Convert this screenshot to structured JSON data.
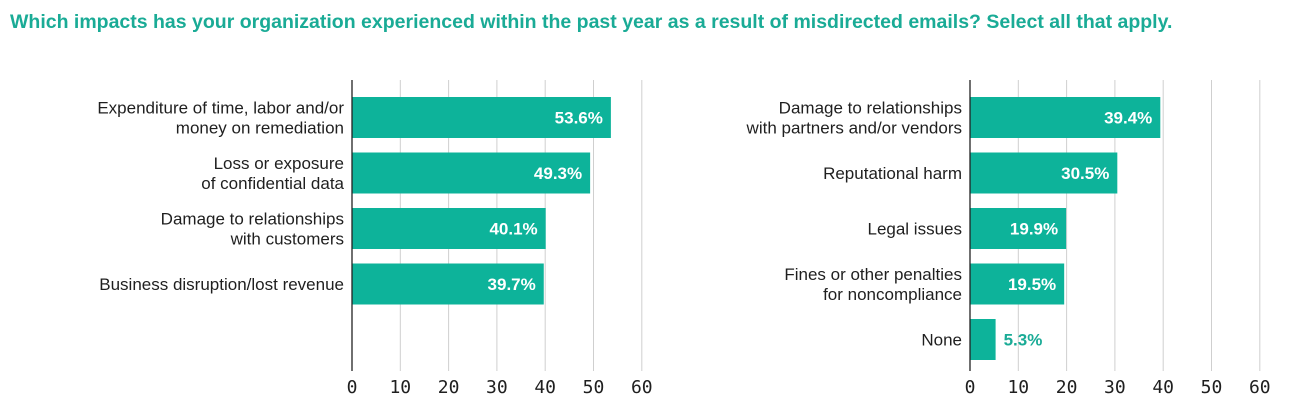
{
  "question": "Which impacts has your organization experienced within the past year as a result of misdirected emails? Select all that apply.",
  "colors": {
    "accent": "#1aab96",
    "bar": "#0db39a",
    "grid": "#cfcfcf",
    "axis": "#222222",
    "text": "#1f1f1f",
    "value_inside": "#ffffff"
  },
  "chart_data": [
    {
      "type": "bar",
      "orientation": "horizontal",
      "categories": [
        [
          "Expenditure of time, labor and/or",
          "money on remediation"
        ],
        [
          "Loss or exposure",
          "of confidential data"
        ],
        [
          "Damage to relationships",
          "with customers"
        ],
        [
          "Business disruption/lost revenue"
        ]
      ],
      "values": [
        53.6,
        49.3,
        40.1,
        39.7
      ],
      "value_labels": [
        "53.6%",
        "49.3%",
        "40.1%",
        "39.7%"
      ],
      "xlim": [
        0,
        60
      ],
      "ticks": [
        0,
        10,
        20,
        30,
        40,
        50,
        60
      ],
      "tick_labels": [
        "0",
        "10",
        "20",
        "30",
        "40",
        "50",
        "60"
      ],
      "grid": true
    },
    {
      "type": "bar",
      "orientation": "horizontal",
      "categories": [
        [
          "Damage to relationships",
          "with partners and/or vendors"
        ],
        [
          "Reputational harm"
        ],
        [
          "Legal issues"
        ],
        [
          "Fines or other penalties",
          "for noncompliance"
        ],
        [
          "None"
        ]
      ],
      "values": [
        39.4,
        30.5,
        19.9,
        19.5,
        5.3
      ],
      "value_labels": [
        "39.4%",
        "30.5%",
        "19.9%",
        "19.5%",
        "5.3%"
      ],
      "xlim": [
        0,
        60
      ],
      "ticks": [
        0,
        10,
        20,
        30,
        40,
        50,
        60
      ],
      "tick_labels": [
        "0",
        "10",
        "20",
        "30",
        "40",
        "50",
        "60"
      ],
      "grid": true
    }
  ]
}
